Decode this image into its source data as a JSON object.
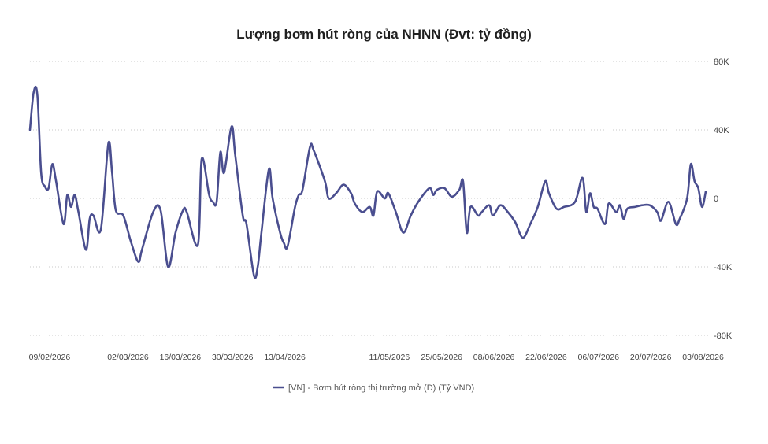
{
  "chart_data": {
    "type": "line",
    "title": "Lượng bơm hút ròng của NHNN (Đvt: tỷ đồng)",
    "xlabel": "",
    "ylabel": "",
    "ylim": [
      -80000,
      80000
    ],
    "y_ticks": [
      80000,
      40000,
      0,
      -40000,
      -80000
    ],
    "y_tick_labels": [
      "80K",
      "40K",
      "0",
      "-40K",
      "-80K"
    ],
    "y_axis_position": "right",
    "grid": "horizontal-dotted",
    "x_tick_labels": [
      "09/02/2026",
      "02/03/2026",
      "16/03/2026",
      "30/03/2026",
      "13/04/2026",
      "11/05/2026",
      "25/05/2026",
      "08/06/2026",
      "22/06/2026",
      "06/07/2026",
      "20/07/2026",
      "03/08/2026"
    ],
    "x_tick_dates": [
      "2026-02-09",
      "2026-03-02",
      "2026-03-16",
      "2026-03-30",
      "2026-04-13",
      "2026-05-11",
      "2026-05-25",
      "2026-06-08",
      "2026-06-22",
      "2026-07-06",
      "2026-07-20",
      "2026-08-03"
    ],
    "x_range": [
      "2026-02-05",
      "2026-08-05"
    ],
    "legend_position": "bottom-center",
    "series": [
      {
        "name": "[VN] - Bơm hút ròng thị trường mở (D) (Tỷ VND)",
        "color": "#4a4e8f",
        "points": [
          [
            "2026-02-05",
            40000
          ],
          [
            "2026-02-06",
            62000
          ],
          [
            "2026-02-07",
            60000
          ],
          [
            "2026-02-08",
            15000
          ],
          [
            "2026-02-09",
            7000
          ],
          [
            "2026-02-10",
            6000
          ],
          [
            "2026-02-11",
            20000
          ],
          [
            "2026-02-12",
            10000
          ],
          [
            "2026-02-14",
            -15000
          ],
          [
            "2026-02-15",
            2000
          ],
          [
            "2026-02-16",
            -5000
          ],
          [
            "2026-02-17",
            2000
          ],
          [
            "2026-02-18",
            -8000
          ],
          [
            "2026-02-20",
            -30000
          ],
          [
            "2026-02-21",
            -12000
          ],
          [
            "2026-02-22",
            -10000
          ],
          [
            "2026-02-24",
            -18000
          ],
          [
            "2026-02-26",
            32000
          ],
          [
            "2026-02-27",
            15000
          ],
          [
            "2026-02-28",
            -7000
          ],
          [
            "2026-03-02",
            -10000
          ],
          [
            "2026-03-04",
            -25000
          ],
          [
            "2026-03-06",
            -37000
          ],
          [
            "2026-03-07",
            -30000
          ],
          [
            "2026-03-10",
            -8000
          ],
          [
            "2026-03-12",
            -7000
          ],
          [
            "2026-03-14",
            -40000
          ],
          [
            "2026-03-16",
            -20000
          ],
          [
            "2026-03-18",
            -7000
          ],
          [
            "2026-03-19",
            -8000
          ],
          [
            "2026-03-22",
            -27000
          ],
          [
            "2026-03-23",
            23000
          ],
          [
            "2026-03-25",
            2000
          ],
          [
            "2026-03-26",
            -2000
          ],
          [
            "2026-03-27",
            -2000
          ],
          [
            "2026-03-28",
            27000
          ],
          [
            "2026-03-29",
            15000
          ],
          [
            "2026-03-31",
            42000
          ],
          [
            "2026-04-01",
            25000
          ],
          [
            "2026-04-03",
            -10000
          ],
          [
            "2026-04-04",
            -15000
          ],
          [
            "2026-04-06",
            -45000
          ],
          [
            "2026-04-07",
            -40000
          ],
          [
            "2026-04-08",
            -20000
          ],
          [
            "2026-04-10",
            17000
          ],
          [
            "2026-04-11",
            0
          ],
          [
            "2026-04-13",
            -20000
          ],
          [
            "2026-04-14",
            -26000
          ],
          [
            "2026-04-15",
            -28000
          ],
          [
            "2026-04-17",
            -5000
          ],
          [
            "2026-04-18",
            2000
          ],
          [
            "2026-04-19",
            5000
          ],
          [
            "2026-04-21",
            30000
          ],
          [
            "2026-04-22",
            28000
          ],
          [
            "2026-04-25",
            10000
          ],
          [
            "2026-04-26",
            0
          ],
          [
            "2026-04-28",
            3000
          ],
          [
            "2026-04-30",
            8000
          ],
          [
            "2026-05-02",
            3000
          ],
          [
            "2026-05-03",
            -3000
          ],
          [
            "2026-05-05",
            -8000
          ],
          [
            "2026-05-07",
            -5000
          ],
          [
            "2026-05-08",
            -10000
          ],
          [
            "2026-05-09",
            4000
          ],
          [
            "2026-05-11",
            0
          ],
          [
            "2026-05-12",
            3000
          ],
          [
            "2026-05-14",
            -8000
          ],
          [
            "2026-05-16",
            -20000
          ],
          [
            "2026-05-18",
            -10000
          ],
          [
            "2026-05-20",
            -2000
          ],
          [
            "2026-05-23",
            6000
          ],
          [
            "2026-05-24",
            2000
          ],
          [
            "2026-05-25",
            5000
          ],
          [
            "2026-05-27",
            6000
          ],
          [
            "2026-05-29",
            1000
          ],
          [
            "2026-05-31",
            5000
          ],
          [
            "2026-06-01",
            10000
          ],
          [
            "2026-06-02",
            -20000
          ],
          [
            "2026-06-03",
            -5000
          ],
          [
            "2026-06-05",
            -10000
          ],
          [
            "2026-06-06",
            -8000
          ],
          [
            "2026-06-08",
            -4000
          ],
          [
            "2026-06-09",
            -10000
          ],
          [
            "2026-06-11",
            -4000
          ],
          [
            "2026-06-13",
            -8000
          ],
          [
            "2026-06-15",
            -14000
          ],
          [
            "2026-06-17",
            -23000
          ],
          [
            "2026-06-19",
            -15000
          ],
          [
            "2026-06-21",
            -5000
          ],
          [
            "2026-06-23",
            10000
          ],
          [
            "2026-06-24",
            3000
          ],
          [
            "2026-06-26",
            -6000
          ],
          [
            "2026-06-28",
            -5000
          ],
          [
            "2026-07-01",
            -2000
          ],
          [
            "2026-07-03",
            12000
          ],
          [
            "2026-07-04",
            -8000
          ],
          [
            "2026-07-05",
            3000
          ],
          [
            "2026-07-06",
            -5000
          ],
          [
            "2026-07-07",
            -6000
          ],
          [
            "2026-07-09",
            -15000
          ],
          [
            "2026-07-10",
            -3000
          ],
          [
            "2026-07-12",
            -8000
          ],
          [
            "2026-07-13",
            -4000
          ],
          [
            "2026-07-14",
            -12000
          ],
          [
            "2026-07-15",
            -6000
          ],
          [
            "2026-07-17",
            -5000
          ],
          [
            "2026-07-19",
            -4000
          ],
          [
            "2026-07-21",
            -4000
          ],
          [
            "2026-07-23",
            -8000
          ],
          [
            "2026-07-24",
            -13000
          ],
          [
            "2026-07-26",
            -2000
          ],
          [
            "2026-07-28",
            -15000
          ],
          [
            "2026-07-29",
            -12000
          ],
          [
            "2026-07-31",
            0
          ],
          [
            "2026-08-01",
            20000
          ],
          [
            "2026-08-02",
            10000
          ],
          [
            "2026-08-03",
            6000
          ],
          [
            "2026-08-04",
            -5000
          ],
          [
            "2026-08-05",
            4000
          ]
        ]
      }
    ]
  }
}
